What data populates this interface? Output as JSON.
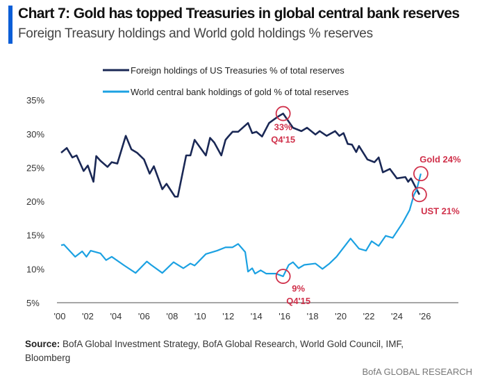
{
  "header": {
    "title": "Chart 7: Gold has topped Treasuries in global central bank reserves",
    "subtitle": "Foreign Treasury holdings and World gold holdings % reserves"
  },
  "footer": {
    "source_label": "Source:",
    "source_text": "BofA Global Investment Strategy, BofA Global Research, World Gold Council, IMF, Bloomberg",
    "brand": "BofA GLOBAL RESEARCH"
  },
  "colors": {
    "treasuries": "#1a2855",
    "gold": "#1ba1e2",
    "annotation": "#d0304a",
    "accent": "#0b5ed7"
  },
  "chart_data": {
    "type": "line",
    "title": "",
    "xlabel": "",
    "ylabel": "",
    "grid": false,
    "legend": "top",
    "xlim": [
      2000,
      2027.5
    ],
    "ylim": [
      5,
      35
    ],
    "x_ticks": [
      "'00",
      "'02",
      "'04",
      "'06",
      "'08",
      "'10",
      "'12",
      "'14",
      "'16",
      "'18",
      "'20",
      "'22",
      "'24",
      "'26"
    ],
    "y_ticks": [
      "5%",
      "10%",
      "15%",
      "20%",
      "25%",
      "30%",
      "35%"
    ],
    "series": [
      {
        "name": "Foreign holdings of US Treasuries % of total reserves",
        "points": [
          [
            2000.1,
            27.2
          ],
          [
            2000.5,
            27.9
          ],
          [
            2000.9,
            26.5
          ],
          [
            2001.2,
            26.8
          ],
          [
            2001.7,
            24.5
          ],
          [
            2002.0,
            25.3
          ],
          [
            2002.4,
            22.9
          ],
          [
            2002.6,
            26.7
          ],
          [
            2002.9,
            26.0
          ],
          [
            2003.4,
            25.1
          ],
          [
            2003.7,
            25.8
          ],
          [
            2004.1,
            25.6
          ],
          [
            2004.7,
            29.7
          ],
          [
            2005.1,
            27.7
          ],
          [
            2005.5,
            27.2
          ],
          [
            2006.0,
            26.2
          ],
          [
            2006.4,
            24.1
          ],
          [
            2006.7,
            25.2
          ],
          [
            2007.3,
            21.8
          ],
          [
            2007.6,
            22.6
          ],
          [
            2008.2,
            20.7
          ],
          [
            2008.4,
            20.7
          ],
          [
            2009.0,
            26.8
          ],
          [
            2009.3,
            26.8
          ],
          [
            2009.6,
            29.1
          ],
          [
            2010.4,
            26.8
          ],
          [
            2010.7,
            29.4
          ],
          [
            2011.0,
            28.7
          ],
          [
            2011.5,
            26.8
          ],
          [
            2011.8,
            29.1
          ],
          [
            2012.0,
            29.6
          ],
          [
            2012.3,
            30.3
          ],
          [
            2012.7,
            30.3
          ],
          [
            2013.4,
            31.6
          ],
          [
            2013.7,
            30.1
          ],
          [
            2014.0,
            30.3
          ],
          [
            2014.4,
            29.6
          ],
          [
            2014.9,
            31.6
          ],
          [
            2015.5,
            32.5
          ],
          [
            2015.9,
            33.0
          ],
          [
            2016.6,
            30.9
          ],
          [
            2017.2,
            30.4
          ],
          [
            2017.6,
            30.9
          ],
          [
            2018.2,
            29.9
          ],
          [
            2018.5,
            30.4
          ],
          [
            2019.0,
            29.7
          ],
          [
            2019.6,
            30.4
          ],
          [
            2019.9,
            29.7
          ],
          [
            2020.2,
            30.1
          ],
          [
            2020.5,
            28.5
          ],
          [
            2020.8,
            28.4
          ],
          [
            2021.1,
            27.3
          ],
          [
            2021.3,
            28.2
          ],
          [
            2021.9,
            26.2
          ],
          [
            2022.4,
            25.8
          ],
          [
            2022.7,
            26.5
          ],
          [
            2023.0,
            24.3
          ],
          [
            2023.5,
            24.8
          ],
          [
            2024.0,
            23.4
          ],
          [
            2024.6,
            23.6
          ],
          [
            2024.8,
            22.9
          ],
          [
            2025.0,
            23.4
          ],
          [
            2025.6,
            21.0
          ]
        ]
      },
      {
        "name": "World central bank holdings of gold % of total reserves",
        "points": [
          [
            2000.1,
            13.5
          ],
          [
            2000.3,
            13.6
          ],
          [
            2001.1,
            11.8
          ],
          [
            2001.6,
            12.6
          ],
          [
            2001.9,
            11.8
          ],
          [
            2002.2,
            12.7
          ],
          [
            2002.9,
            12.3
          ],
          [
            2003.3,
            11.3
          ],
          [
            2003.7,
            11.8
          ],
          [
            2004.6,
            10.5
          ],
          [
            2005.4,
            9.4
          ],
          [
            2006.2,
            11.1
          ],
          [
            2006.5,
            10.6
          ],
          [
            2007.3,
            9.4
          ],
          [
            2008.1,
            11.0
          ],
          [
            2008.8,
            10.1
          ],
          [
            2009.3,
            10.8
          ],
          [
            2009.6,
            10.5
          ],
          [
            2010.4,
            12.2
          ],
          [
            2011.2,
            12.7
          ],
          [
            2011.8,
            13.2
          ],
          [
            2012.3,
            13.2
          ],
          [
            2012.7,
            13.7
          ],
          [
            2013.2,
            12.5
          ],
          [
            2013.4,
            9.6
          ],
          [
            2013.7,
            10.1
          ],
          [
            2013.9,
            9.3
          ],
          [
            2014.3,
            9.8
          ],
          [
            2014.7,
            9.3
          ],
          [
            2015.4,
            9.3
          ],
          [
            2015.9,
            8.9
          ],
          [
            2016.3,
            10.6
          ],
          [
            2016.6,
            11.0
          ],
          [
            2017.0,
            10.1
          ],
          [
            2017.4,
            10.6
          ],
          [
            2018.2,
            10.8
          ],
          [
            2018.7,
            10.0
          ],
          [
            2019.2,
            10.8
          ],
          [
            2019.7,
            11.8
          ],
          [
            2020.7,
            14.5
          ],
          [
            2021.3,
            13.0
          ],
          [
            2021.8,
            12.7
          ],
          [
            2022.2,
            14.1
          ],
          [
            2022.7,
            13.4
          ],
          [
            2023.2,
            14.9
          ],
          [
            2023.7,
            14.6
          ],
          [
            2024.4,
            16.8
          ],
          [
            2024.9,
            18.7
          ],
          [
            2025.2,
            20.9
          ],
          [
            2025.4,
            21.7
          ],
          [
            2025.7,
            24.1
          ]
        ]
      }
    ],
    "annotations": [
      {
        "text": [
          "33%",
          "Q4'15"
        ],
        "x": 2015.9,
        "y": 33.0,
        "series": 0,
        "label_pos": "below"
      },
      {
        "text": [
          "9%",
          "Q4'15"
        ],
        "x": 2015.9,
        "y": 8.9,
        "series": 1,
        "label_pos": "below-right"
      },
      {
        "text": [
          "Gold 24%"
        ],
        "x": 2025.7,
        "y": 24.1,
        "series": 1,
        "label_pos": "above"
      },
      {
        "text": [
          "UST 21%"
        ],
        "x": 2025.6,
        "y": 21.0,
        "series": 0,
        "label_pos": "below"
      }
    ]
  }
}
